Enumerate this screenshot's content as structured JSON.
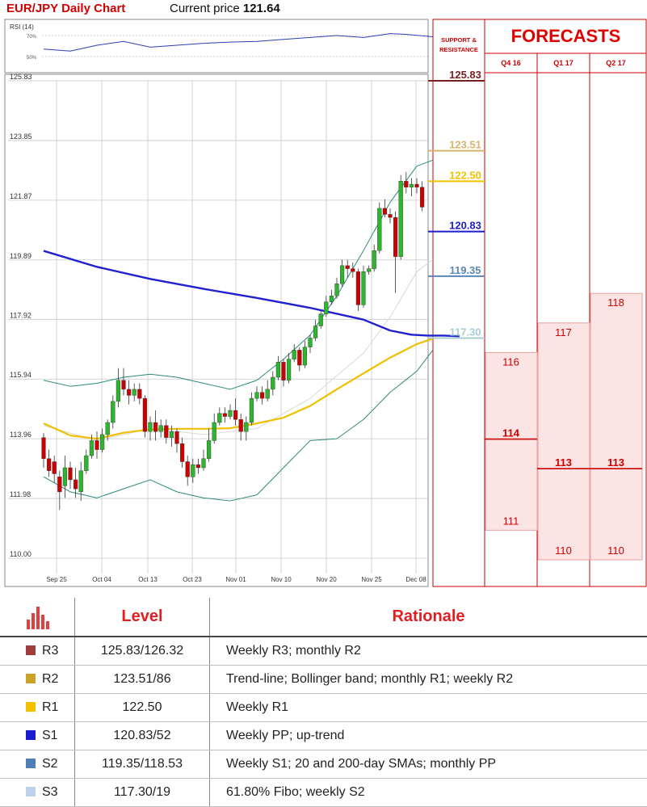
{
  "header": {
    "title": "EUR/JPY Daily Chart",
    "price_label": "Current price",
    "price_value": "121.64"
  },
  "rsi": {
    "label": "RSI (14)",
    "levels": [
      "70%",
      "50%"
    ]
  },
  "sr_panel": {
    "title_lines": [
      "SUPPORT &",
      "RESISTANCE"
    ]
  },
  "forecasts": {
    "title": "FORECASTS",
    "quarters": [
      {
        "label": "Q4 16",
        "top": 116,
        "mid": 114,
        "bottom": 111
      },
      {
        "label": "Q1 17",
        "top": 117,
        "mid": 113,
        "bottom": 110
      },
      {
        "label": "Q2 17",
        "top": 118,
        "mid": 113,
        "bottom": 110
      }
    ],
    "colors": {
      "band": "#fde4e4",
      "line": "#e8a0a0",
      "mid_line": "#cc0000",
      "text": "#cc0000"
    }
  },
  "chart_data": {
    "type": "candlestick",
    "y_ticks": [
      "125.83",
      "123.85",
      "121.87",
      "119.89",
      "117.92",
      "115.94",
      "113.96",
      "111.98",
      "110.00"
    ],
    "ylim": [
      110.0,
      125.83
    ],
    "x_ticks": [
      "Sep 25",
      "Oct 04",
      "Oct 13",
      "Oct 23",
      "Nov 01",
      "Nov 10",
      "Nov 20",
      "Nov 25",
      "Dec 08"
    ],
    "candles": [
      [
        114.0,
        113.3,
        114.15,
        113.0
      ],
      [
        113.3,
        112.9,
        113.6,
        112.7
      ],
      [
        113.2,
        112.8,
        113.4,
        112.5
      ],
      [
        112.7,
        112.2,
        112.9,
        111.6
      ],
      [
        112.4,
        113.0,
        113.4,
        112.0
      ],
      [
        113.0,
        112.6,
        113.2,
        112.3
      ],
      [
        112.6,
        112.3,
        113.0,
        112.0
      ],
      [
        112.2,
        112.9,
        113.2,
        111.9
      ],
      [
        112.9,
        113.4,
        113.6,
        112.8
      ],
      [
        113.4,
        113.9,
        114.1,
        113.3
      ],
      [
        113.9,
        113.6,
        114.2,
        113.3
      ],
      [
        113.6,
        114.1,
        114.3,
        113.5
      ],
      [
        114.1,
        114.5,
        114.6,
        113.9
      ],
      [
        114.5,
        115.2,
        115.4,
        114.3
      ],
      [
        115.2,
        115.9,
        116.3,
        115.0
      ],
      [
        115.9,
        115.6,
        116.3,
        115.4
      ],
      [
        115.6,
        115.4,
        115.9,
        115.1
      ],
      [
        115.4,
        115.6,
        115.8,
        115.2
      ],
      [
        115.6,
        115.3,
        115.8,
        115.1
      ],
      [
        115.3,
        114.2,
        115.4,
        114.0
      ],
      [
        114.2,
        114.5,
        114.7,
        113.9
      ],
      [
        114.5,
        114.2,
        114.9,
        113.9
      ],
      [
        114.2,
        114.4,
        114.6,
        114.0
      ],
      [
        114.4,
        114.0,
        114.6,
        113.8
      ],
      [
        114.0,
        114.2,
        114.4,
        113.7
      ],
      [
        114.2,
        113.8,
        114.3,
        113.5
      ],
      [
        113.8,
        113.2,
        114.0,
        113.0
      ],
      [
        113.2,
        112.7,
        113.4,
        112.4
      ],
      [
        112.7,
        113.1,
        113.3,
        112.5
      ],
      [
        113.1,
        113.0,
        113.3,
        112.8
      ],
      [
        113.0,
        113.3,
        113.6,
        112.9
      ],
      [
        113.3,
        113.9,
        114.3,
        113.2
      ],
      [
        113.9,
        114.5,
        114.8,
        113.8
      ],
      [
        114.5,
        114.8,
        115.0,
        114.4
      ],
      [
        114.8,
        114.7,
        115.0,
        114.5
      ],
      [
        114.7,
        114.9,
        115.1,
        114.6
      ],
      [
        114.9,
        114.6,
        115.3,
        114.4
      ],
      [
        114.6,
        114.2,
        114.8,
        113.9
      ],
      [
        114.2,
        114.5,
        114.7,
        113.9
      ],
      [
        114.5,
        115.3,
        115.5,
        114.4
      ],
      [
        115.3,
        115.5,
        115.7,
        115.2
      ],
      [
        115.5,
        115.3,
        115.7,
        115.1
      ],
      [
        115.3,
        115.6,
        115.9,
        115.2
      ],
      [
        115.6,
        116.0,
        116.2,
        115.4
      ],
      [
        116.0,
        116.5,
        116.7,
        115.9
      ],
      [
        116.5,
        115.9,
        116.6,
        115.7
      ],
      [
        115.9,
        116.6,
        116.8,
        115.8
      ],
      [
        116.6,
        116.9,
        117.1,
        116.5
      ],
      [
        116.9,
        116.4,
        117.0,
        116.2
      ],
      [
        116.4,
        117.0,
        117.2,
        116.3
      ],
      [
        117.0,
        117.3,
        117.4,
        116.8
      ],
      [
        117.3,
        117.7,
        117.9,
        117.2
      ],
      [
        117.7,
        118.1,
        118.2,
        117.6
      ],
      [
        118.1,
        118.5,
        118.7,
        118.0
      ],
      [
        118.5,
        118.7,
        118.9,
        118.4
      ],
      [
        118.7,
        119.1,
        119.3,
        118.6
      ],
      [
        119.1,
        119.7,
        119.9,
        119.0
      ],
      [
        119.7,
        119.6,
        119.9,
        119.3
      ],
      [
        119.6,
        119.5,
        119.8,
        119.3
      ],
      [
        119.5,
        118.4,
        119.6,
        118.2
      ],
      [
        118.4,
        119.5,
        119.7,
        118.3
      ],
      [
        119.5,
        119.6,
        119.7,
        119.4
      ],
      [
        119.6,
        120.2,
        120.4,
        119.5
      ],
      [
        120.2,
        121.6,
        121.8,
        120.1
      ],
      [
        121.6,
        121.4,
        121.9,
        121.3
      ],
      [
        121.4,
        121.3,
        121.6,
        121.1
      ],
      [
        121.3,
        120.0,
        121.5,
        118.8
      ],
      [
        120.0,
        122.5,
        122.7,
        119.9
      ],
      [
        122.5,
        122.3,
        122.8,
        122.1
      ],
      [
        122.3,
        122.4,
        122.6,
        122.0
      ],
      [
        122.4,
        122.3,
        122.6,
        122.1
      ],
      [
        122.3,
        121.64,
        122.5,
        121.5
      ]
    ],
    "sma200": [
      [
        0,
        120.19
      ],
      [
        10,
        119.66
      ],
      [
        20,
        119.26
      ],
      [
        30,
        118.93
      ],
      [
        40,
        118.63
      ],
      [
        50,
        118.3
      ],
      [
        60,
        117.91
      ],
      [
        65,
        117.55
      ],
      [
        69,
        117.41
      ],
      [
        72,
        117.38
      ],
      [
        75,
        117.38
      ],
      [
        78,
        117.36
      ]
    ],
    "sma_yellow": [
      [
        0,
        114.47
      ],
      [
        5,
        114.07
      ],
      [
        10,
        113.96
      ],
      [
        15,
        114.16
      ],
      [
        20,
        114.27
      ],
      [
        25,
        114.29
      ],
      [
        30,
        114.29
      ],
      [
        35,
        114.31
      ],
      [
        40,
        114.47
      ],
      [
        45,
        114.66
      ],
      [
        50,
        115.05
      ],
      [
        55,
        115.6
      ],
      [
        60,
        116.13
      ],
      [
        65,
        116.65
      ],
      [
        70,
        117.1
      ],
      [
        73,
        117.28
      ]
    ],
    "boll_upper": [
      [
        0,
        115.9
      ],
      [
        5,
        115.7
      ],
      [
        10,
        115.8
      ],
      [
        15,
        116.0
      ],
      [
        20,
        116.1
      ],
      [
        25,
        116.0
      ],
      [
        30,
        115.8
      ],
      [
        35,
        115.6
      ],
      [
        40,
        115.9
      ],
      [
        45,
        116.6
      ],
      [
        50,
        117.4
      ],
      [
        55,
        118.7
      ],
      [
        60,
        120.2
      ],
      [
        65,
        121.8
      ],
      [
        70,
        123.0
      ],
      [
        73,
        123.2
      ]
    ],
    "boll_lower": [
      [
        0,
        112.7
      ],
      [
        5,
        112.2
      ],
      [
        10,
        112.0
      ],
      [
        15,
        112.3
      ],
      [
        20,
        112.6
      ],
      [
        25,
        112.2
      ],
      [
        30,
        112.0
      ],
      [
        35,
        111.9
      ],
      [
        40,
        112.1
      ],
      [
        45,
        113.0
      ],
      [
        50,
        113.9
      ],
      [
        55,
        113.96
      ],
      [
        60,
        114.6
      ],
      [
        65,
        115.5
      ],
      [
        70,
        116.2
      ],
      [
        73,
        116.9
      ]
    ],
    "boll_mid": [
      [
        0,
        114.4
      ],
      [
        10,
        113.9
      ],
      [
        20,
        114.3
      ],
      [
        30,
        114.1
      ],
      [
        40,
        114.3
      ],
      [
        50,
        115.3
      ],
      [
        60,
        116.8
      ],
      [
        65,
        118.0
      ],
      [
        70,
        119.5
      ],
      [
        73,
        119.9
      ]
    ],
    "rsi_values": [
      [
        0,
        0.4
      ],
      [
        5,
        0.35
      ],
      [
        10,
        0.5
      ],
      [
        15,
        0.6
      ],
      [
        20,
        0.45
      ],
      [
        25,
        0.5
      ],
      [
        30,
        0.55
      ],
      [
        35,
        0.58
      ],
      [
        40,
        0.6
      ],
      [
        45,
        0.65
      ],
      [
        50,
        0.7
      ],
      [
        55,
        0.75
      ],
      [
        60,
        0.7
      ],
      [
        65,
        0.8
      ],
      [
        68,
        0.78
      ],
      [
        73,
        0.72
      ]
    ],
    "sr_levels": [
      {
        "value": "125.83",
        "num": 125.83,
        "color": "#7a1f1f"
      },
      {
        "value": "123.51",
        "num": 123.51,
        "color": "#d9b36b"
      },
      {
        "value": "122.50",
        "num": 122.5,
        "color": "#f2c200"
      },
      {
        "value": "120.83",
        "num": 120.83,
        "color": "#1c1ccf"
      },
      {
        "value": "119.35",
        "num": 119.35,
        "color": "#5b86b5"
      },
      {
        "value": "117.30",
        "num": 117.3,
        "color": "#a7cfd3"
      }
    ],
    "colors": {
      "up": "#2db52d",
      "down": "#cc0000",
      "sma200": "#2020d0",
      "sma_yellow": "#f0c000",
      "boll": "#2a8a7a",
      "grid": "#c8c8c8"
    }
  },
  "table": {
    "headers": {
      "level": "Level",
      "rationale": "Rationale"
    },
    "rows": [
      {
        "name": "R3",
        "level": "125.83/126.32",
        "rationale": "Weekly R3; monthly R2",
        "color": "#a23b3b"
      },
      {
        "name": "R2",
        "level": "123.51/86",
        "rationale": "Trend-line; Bollinger band; monthly R1; weekly R2",
        "color": "#c9a227"
      },
      {
        "name": "R1",
        "level": "122.50",
        "rationale": "Weekly R1",
        "color": "#f2c200"
      },
      {
        "name": "S1",
        "level": "120.83/52",
        "rationale": "Weekly PP; up-trend",
        "color": "#1c1ccf"
      },
      {
        "name": "S2",
        "level": "119.35/118.53",
        "rationale": "Weekly S1; 20 and 200-day SMAs; monthly PP",
        "color": "#4f7fb7"
      },
      {
        "name": "S3",
        "level": "117.30/19",
        "rationale": "61.80% Fibo; weekly S2",
        "color": "#bcd2ec"
      }
    ]
  }
}
